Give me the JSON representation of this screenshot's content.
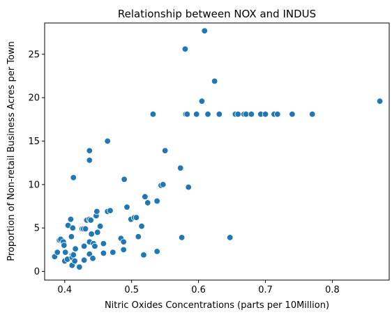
{
  "chart_data": {
    "type": "scatter",
    "title": "Relationship between NOX and INDUS",
    "xlabel": "Nitric Oxides Concentrations (parts per 10Million)",
    "ylabel": "Proportion of Non-retail Business Acres per Town",
    "xlim": [
      0.37,
      0.885
    ],
    "ylim": [
      -1.0,
      28.6
    ],
    "xticks": [
      0.4,
      0.5,
      0.6,
      0.7,
      0.8
    ],
    "xtick_labels": [
      "0.4",
      "0.5",
      "0.6",
      "0.7",
      "0.8"
    ],
    "yticks": [
      0,
      5,
      10,
      15,
      20,
      25
    ],
    "ytick_labels": [
      "0",
      "5",
      "10",
      "15",
      "20",
      "25"
    ],
    "grid": false,
    "point_color": "#1f77b4",
    "points": [
      [
        0.385,
        1.7
      ],
      [
        0.389,
        2.2
      ],
      [
        0.392,
        3.6
      ],
      [
        0.394,
        3.7
      ],
      [
        0.398,
        3.4
      ],
      [
        0.399,
        3.0
      ],
      [
        0.401,
        2.2
      ],
      [
        0.4,
        1.2
      ],
      [
        0.404,
        1.4
      ],
      [
        0.405,
        5.3
      ],
      [
        0.409,
        6.0
      ],
      [
        0.41,
        4.0
      ],
      [
        0.411,
        1.9
      ],
      [
        0.411,
        0.7
      ],
      [
        0.411,
        1.6
      ],
      [
        0.412,
        5.0
      ],
      [
        0.413,
        2.0
      ],
      [
        0.413,
        1.9
      ],
      [
        0.413,
        10.8
      ],
      [
        0.415,
        1.2
      ],
      [
        0.416,
        2.6
      ],
      [
        0.422,
        0.5
      ],
      [
        0.426,
        4.9
      ],
      [
        0.428,
        4.9
      ],
      [
        0.429,
        2.9
      ],
      [
        0.429,
        1.3
      ],
      [
        0.431,
        4.9
      ],
      [
        0.432,
        5.9
      ],
      [
        0.433,
        5.9
      ],
      [
        0.437,
        3.4
      ],
      [
        0.437,
        2.0
      ],
      [
        0.437,
        6.0
      ],
      [
        0.439,
        5.9
      ],
      [
        0.437,
        13.9
      ],
      [
        0.437,
        12.8
      ],
      [
        0.44,
        4.3
      ],
      [
        0.442,
        1.5
      ],
      [
        0.443,
        3.2
      ],
      [
        0.445,
        2.9
      ],
      [
        0.447,
        6.4
      ],
      [
        0.448,
        6.9
      ],
      [
        0.449,
        4.5
      ],
      [
        0.453,
        5.2
      ],
      [
        0.458,
        2.1
      ],
      [
        0.458,
        3.2
      ],
      [
        0.464,
        15.0
      ],
      [
        0.464,
        6.9
      ],
      [
        0.468,
        7.0
      ],
      [
        0.472,
        2.2
      ],
      [
        0.484,
        3.8
      ],
      [
        0.488,
        3.4
      ],
      [
        0.488,
        2.5
      ],
      [
        0.489,
        10.6
      ],
      [
        0.493,
        7.4
      ],
      [
        0.499,
        6.0
      ],
      [
        0.504,
        6.2
      ],
      [
        0.507,
        6.2
      ],
      [
        0.51,
        4.0
      ],
      [
        0.515,
        5.2
      ],
      [
        0.518,
        1.9
      ],
      [
        0.52,
        8.6
      ],
      [
        0.524,
        7.9
      ],
      [
        0.532,
        18.1
      ],
      [
        0.538,
        8.1
      ],
      [
        0.538,
        2.3
      ],
      [
        0.544,
        9.9
      ],
      [
        0.547,
        10.0
      ],
      [
        0.55,
        13.9
      ],
      [
        0.573,
        11.9
      ],
      [
        0.575,
        3.9
      ],
      [
        0.581,
        18.1
      ],
      [
        0.58,
        25.6
      ],
      [
        0.583,
        18.1
      ],
      [
        0.585,
        9.7
      ],
      [
        0.597,
        18.1
      ],
      [
        0.605,
        19.6
      ],
      [
        0.609,
        27.7
      ],
      [
        0.614,
        18.1
      ],
      [
        0.624,
        21.9
      ],
      [
        0.631,
        18.1
      ],
      [
        0.647,
        3.9
      ],
      [
        0.655,
        18.1
      ],
      [
        0.659,
        18.1
      ],
      [
        0.668,
        18.1
      ],
      [
        0.671,
        18.1
      ],
      [
        0.679,
        18.1
      ],
      [
        0.693,
        18.1
      ],
      [
        0.7,
        18.1
      ],
      [
        0.713,
        18.1
      ],
      [
        0.718,
        18.1
      ],
      [
        0.74,
        18.1
      ],
      [
        0.77,
        18.1
      ],
      [
        0.871,
        19.6
      ]
    ]
  }
}
